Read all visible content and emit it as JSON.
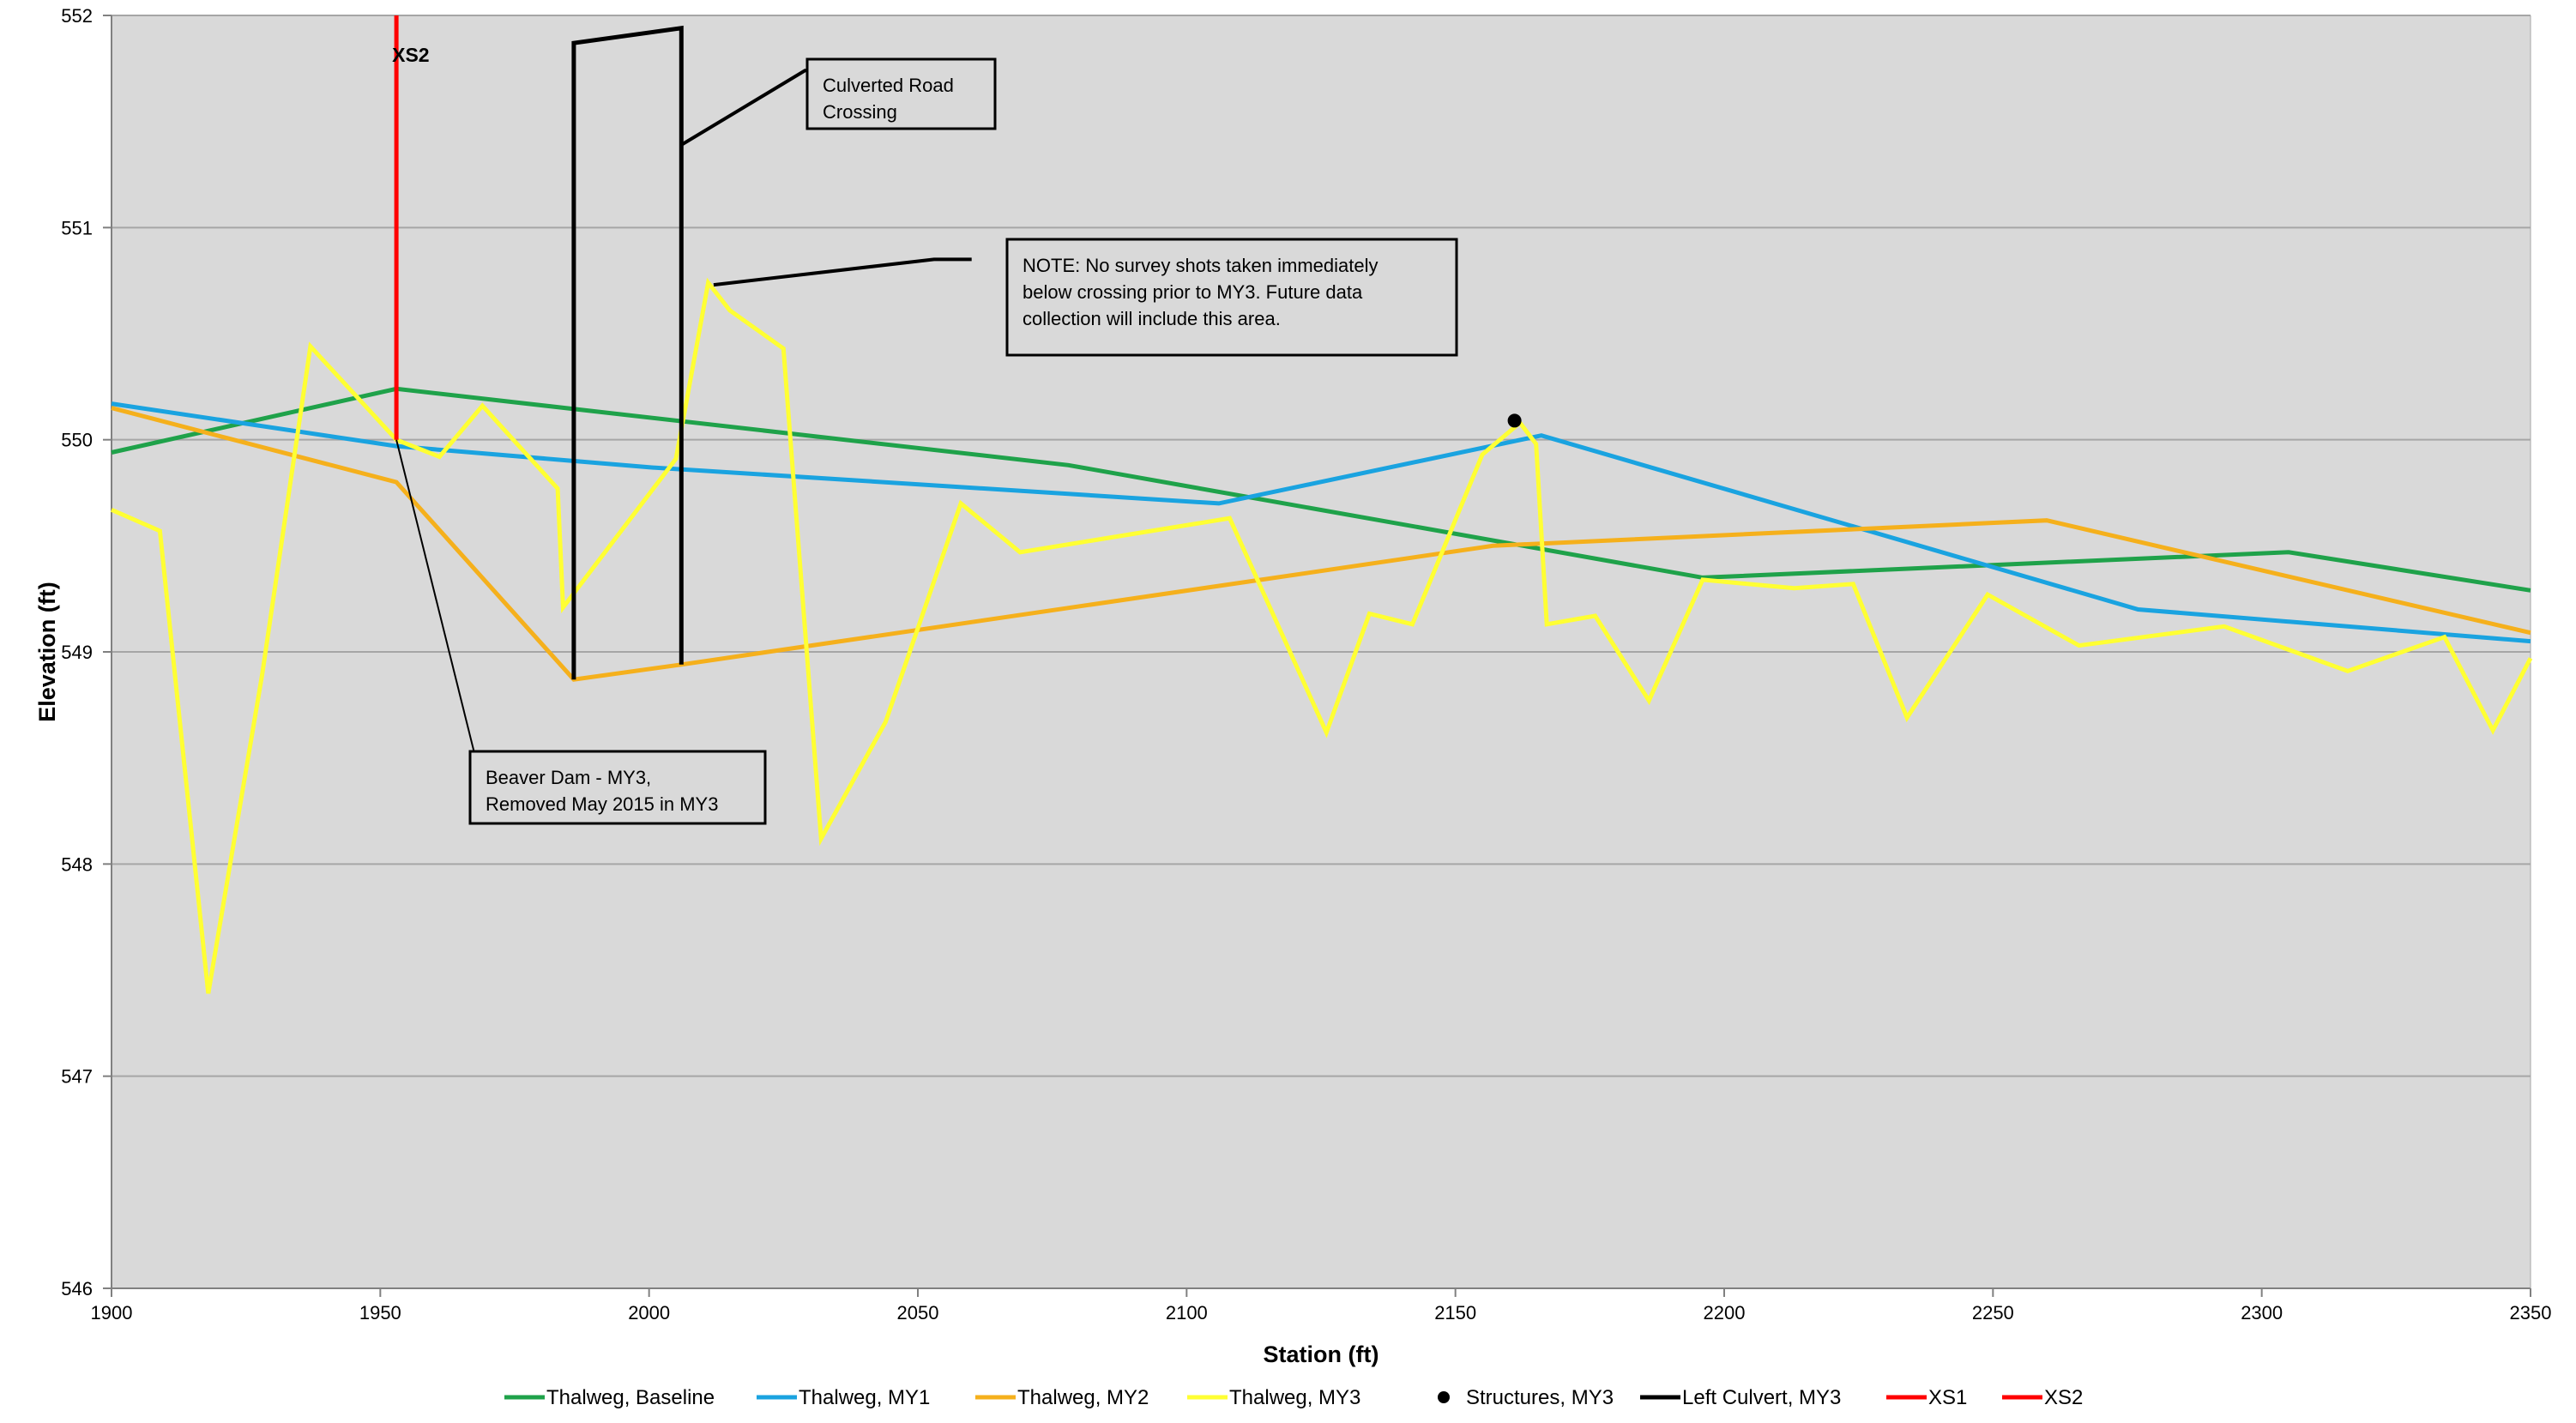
{
  "chart_data": {
    "type": "line",
    "title": "",
    "xlabel": "Station (ft)",
    "ylabel": "Elevation (ft)",
    "xlim": [
      1900,
      2350
    ],
    "ylim": [
      546,
      552
    ],
    "xticks": [
      1900,
      1950,
      2000,
      2050,
      2100,
      2150,
      2200,
      2250,
      2300,
      2350
    ],
    "yticks": [
      546,
      547,
      548,
      549,
      550,
      551,
      552
    ],
    "grid": "horizontal",
    "legend_position": "bottom",
    "colors": {
      "plot_background": "#d9d9d9",
      "gridline": "#a6a6a6",
      "baseline": "#1fa24a",
      "my1": "#1aa3e0",
      "my2": "#f5b01c",
      "my3": "#ffff33",
      "structures": "#000000",
      "culvert": "#000000",
      "xs": "#ff0000"
    },
    "series": [
      {
        "name": "Thalweg, Baseline",
        "color": "#1fa24a",
        "kind": "line",
        "points": [
          [
            1900,
            549.94
          ],
          [
            1953,
            550.24
          ],
          [
            2078,
            549.88
          ],
          [
            2196,
            549.35
          ],
          [
            2305,
            549.47
          ],
          [
            2350,
            549.29
          ]
        ]
      },
      {
        "name": "Thalweg, MY1",
        "color": "#1aa3e0",
        "kind": "line",
        "points": [
          [
            1900,
            550.17
          ],
          [
            1953,
            549.97
          ],
          [
            2000,
            549.87
          ],
          [
            2106,
            549.7
          ],
          [
            2166,
            550.02
          ],
          [
            2277,
            549.2
          ],
          [
            2350,
            549.05
          ]
        ]
      },
      {
        "name": "Thalweg, MY2",
        "color": "#f5b01c",
        "kind": "line",
        "points": [
          [
            1900,
            550.15
          ],
          [
            1953,
            549.8
          ],
          [
            1986,
            548.87
          ],
          [
            2006,
            548.94
          ],
          [
            2157,
            549.5
          ],
          [
            2260,
            549.62
          ],
          [
            2350,
            549.09
          ]
        ]
      },
      {
        "name": "Thalweg, MY3",
        "color": "#ffff33",
        "kind": "line",
        "points": [
          [
            1900,
            549.67
          ],
          [
            1909,
            549.57
          ],
          [
            1918,
            547.39
          ],
          [
            1928,
            548.89
          ],
          [
            1937,
            550.44
          ],
          [
            1953,
            550.0
          ],
          [
            1961,
            549.92
          ],
          [
            1969,
            550.16
          ],
          [
            1983,
            549.77
          ],
          [
            1984,
            549.21
          ],
          [
            2005,
            549.91
          ],
          [
            2011,
            550.74
          ],
          [
            2015,
            550.61
          ],
          [
            2025,
            550.43
          ],
          [
            2032,
            548.12
          ],
          [
            2044,
            548.67
          ],
          [
            2058,
            549.7
          ],
          [
            2069,
            549.47
          ],
          [
            2108,
            549.63
          ],
          [
            2126,
            548.62
          ],
          [
            2134,
            549.18
          ],
          [
            2142,
            549.13
          ],
          [
            2155,
            549.93
          ],
          [
            2162,
            550.08
          ],
          [
            2165,
            549.98
          ],
          [
            2167,
            549.13
          ],
          [
            2176,
            549.17
          ],
          [
            2186,
            548.77
          ],
          [
            2196,
            549.34
          ],
          [
            2213,
            549.3
          ],
          [
            2224,
            549.32
          ],
          [
            2234,
            548.69
          ],
          [
            2249,
            549.27
          ],
          [
            2266,
            549.03
          ],
          [
            2293,
            549.12
          ],
          [
            2316,
            548.91
          ],
          [
            2334,
            549.07
          ],
          [
            2343,
            548.63
          ],
          [
            2350,
            548.97
          ]
        ]
      },
      {
        "name": "Structures, MY3",
        "color": "#000000",
        "kind": "marker",
        "points": [
          [
            2161,
            550.09
          ]
        ]
      },
      {
        "name": "Left Culvert, MY3",
        "color": "#000000",
        "kind": "line",
        "points": [
          [
            1986,
            548.87
          ],
          [
            1986,
            551.87
          ],
          [
            2006,
            551.94
          ],
          [
            2006,
            548.94
          ]
        ]
      },
      {
        "name": "XS1",
        "color": "#ff0000",
        "kind": "line",
        "points": []
      },
      {
        "name": "XS2",
        "color": "#ff0000",
        "kind": "line",
        "points": [
          [
            1953,
            550.0
          ],
          [
            1953,
            552.0
          ]
        ]
      }
    ],
    "annotations": [
      {
        "key": "xs2",
        "text": "XS2",
        "anchor": [
          1953,
          551.8
        ]
      },
      {
        "key": "culvert",
        "text": "Culverted Road Crossing",
        "lines": [
          "Culverted Road",
          "Crossing"
        ],
        "leader": [
          [
            2006,
            551.39
          ],
          [
            2029,
            551.74
          ],
          [
            2032,
            551.74
          ]
        ]
      },
      {
        "key": "note",
        "text": "NOTE: No survey shots taken immediately below crossing prior to MY3. Future data collection will include this area.",
        "lines": [
          "NOTE: No survey shots taken immediately",
          "below crossing prior to MY3. Future data",
          "collection will include this area."
        ],
        "leader": [
          [
            2012,
            550.73
          ],
          [
            2053,
            550.85
          ],
          [
            2060,
            550.85
          ]
        ]
      },
      {
        "key": "beaver",
        "text": "Beaver Dam - MY3, Removed May 2015 in MY3",
        "lines": [
          "Beaver Dam - MY3,",
          "Removed May 2015 in MY3"
        ],
        "leader": [
          [
            1953,
            550.0
          ],
          [
            1969,
            548.37
          ]
        ]
      }
    ]
  }
}
